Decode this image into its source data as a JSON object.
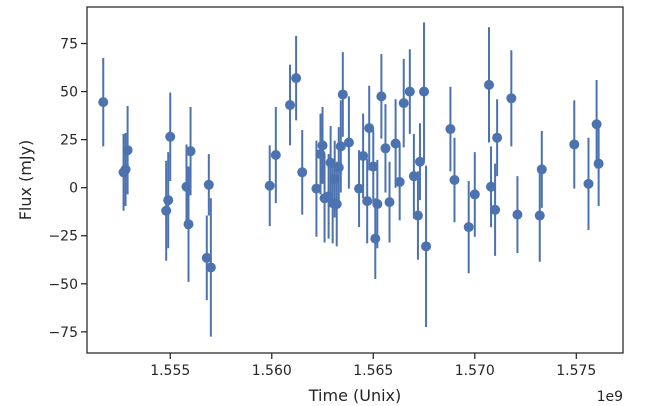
{
  "chart_data": {
    "type": "scatter",
    "errorbars": true,
    "title": "",
    "xlabel": "Time (Unix)",
    "ylabel": "Flux (mJy)",
    "x_offset_label": "1e9",
    "x_tick_labels": [
      "1.555",
      "1.560",
      "1.565",
      "1.570",
      "1.575"
    ],
    "x_ticks": [
      1.555,
      1.56,
      1.565,
      1.57,
      1.575
    ],
    "y_tick_labels": [
      "75",
      "50",
      "25",
      "0",
      "−25",
      "−50",
      "−75"
    ],
    "y_ticks": [
      75,
      50,
      25,
      0,
      -25,
      -50,
      -75
    ],
    "xlim": [
      1.5509,
      1.5773
    ],
    "ylim": [
      -86,
      94
    ],
    "grid": false,
    "color": "#4c72b0",
    "points": [
      {
        "x": 1.5517,
        "y": 44.5,
        "err": 23
      },
      {
        "x": 1.5527,
        "y": 8,
        "err": 20
      },
      {
        "x": 1.5528,
        "y": 9.5,
        "err": 19
      },
      {
        "x": 1.5529,
        "y": 19.5,
        "err": 23
      },
      {
        "x": 1.5548,
        "y": -12,
        "err": 26
      },
      {
        "x": 1.5549,
        "y": -6.5,
        "err": 25
      },
      {
        "x": 1.555,
        "y": 26.5,
        "err": 23
      },
      {
        "x": 1.5558,
        "y": 0.5,
        "err": 22
      },
      {
        "x": 1.5559,
        "y": -19,
        "err": 30
      },
      {
        "x": 1.556,
        "y": 19,
        "err": 23
      },
      {
        "x": 1.5568,
        "y": -36.5,
        "err": 22
      },
      {
        "x": 1.5569,
        "y": 1.5,
        "err": 16
      },
      {
        "x": 1.557,
        "y": -41.5,
        "err": 36
      },
      {
        "x": 1.5599,
        "y": 1,
        "err": 21
      },
      {
        "x": 1.5602,
        "y": 17,
        "err": 25
      },
      {
        "x": 1.5609,
        "y": 43,
        "err": 21
      },
      {
        "x": 1.5612,
        "y": 57,
        "err": 22
      },
      {
        "x": 1.5615,
        "y": 8,
        "err": 22
      },
      {
        "x": 1.5622,
        "y": -0.5,
        "err": 25
      },
      {
        "x": 1.5624,
        "y": 17.5,
        "err": 21
      },
      {
        "x": 1.5625,
        "y": 22,
        "err": 20
      },
      {
        "x": 1.5626,
        "y": -5.5,
        "err": 23
      },
      {
        "x": 1.5628,
        "y": -4.5,
        "err": 22
      },
      {
        "x": 1.5629,
        "y": 13,
        "err": 19
      },
      {
        "x": 1.563,
        "y": -8,
        "err": 21
      },
      {
        "x": 1.5631,
        "y": 4.5,
        "err": 20
      },
      {
        "x": 1.5632,
        "y": -8.5,
        "err": 22
      },
      {
        "x": 1.5633,
        "y": 10.5,
        "err": 21
      },
      {
        "x": 1.5634,
        "y": 21.5,
        "err": 24
      },
      {
        "x": 1.5635,
        "y": 48.5,
        "err": 22
      },
      {
        "x": 1.5638,
        "y": 23.5,
        "err": 24
      },
      {
        "x": 1.5643,
        "y": -0.5,
        "err": 20
      },
      {
        "x": 1.5645,
        "y": 16.5,
        "err": 22
      },
      {
        "x": 1.5647,
        "y": -7,
        "err": 22
      },
      {
        "x": 1.5648,
        "y": 31,
        "err": 22
      },
      {
        "x": 1.565,
        "y": 11,
        "err": 19
      },
      {
        "x": 1.5651,
        "y": -26.5,
        "err": 21
      },
      {
        "x": 1.5652,
        "y": -8.5,
        "err": 23
      },
      {
        "x": 1.5654,
        "y": 47.5,
        "err": 22
      },
      {
        "x": 1.5656,
        "y": 20.5,
        "err": 23
      },
      {
        "x": 1.5658,
        "y": -7.5,
        "err": 21
      },
      {
        "x": 1.5661,
        "y": 23,
        "err": 23
      },
      {
        "x": 1.5663,
        "y": 3,
        "err": 20
      },
      {
        "x": 1.5665,
        "y": 44,
        "err": 23
      },
      {
        "x": 1.5668,
        "y": 50,
        "err": 22
      },
      {
        "x": 1.567,
        "y": 6,
        "err": 22
      },
      {
        "x": 1.5672,
        "y": -14.5,
        "err": 23
      },
      {
        "x": 1.5673,
        "y": 13.5,
        "err": 20
      },
      {
        "x": 1.5675,
        "y": 50,
        "err": 36
      },
      {
        "x": 1.5676,
        "y": -30.5,
        "err": 42
      },
      {
        "x": 1.5688,
        "y": 30.5,
        "err": 22
      },
      {
        "x": 1.569,
        "y": 4,
        "err": 22
      },
      {
        "x": 1.5697,
        "y": -20.5,
        "err": 24
      },
      {
        "x": 1.57,
        "y": -3.5,
        "err": 22
      },
      {
        "x": 1.5707,
        "y": 53.5,
        "err": 30
      },
      {
        "x": 1.5708,
        "y": 0.5,
        "err": 21
      },
      {
        "x": 1.571,
        "y": -11.5,
        "err": 24
      },
      {
        "x": 1.5711,
        "y": 26,
        "err": 20
      },
      {
        "x": 1.5718,
        "y": 46.5,
        "err": 25
      },
      {
        "x": 1.5721,
        "y": -14,
        "err": 20
      },
      {
        "x": 1.5732,
        "y": -14.5,
        "err": 24
      },
      {
        "x": 1.5733,
        "y": 9.5,
        "err": 20
      },
      {
        "x": 1.5749,
        "y": 22.5,
        "err": 23
      },
      {
        "x": 1.5756,
        "y": 2,
        "err": 24
      },
      {
        "x": 1.576,
        "y": 33,
        "err": 23
      },
      {
        "x": 1.5761,
        "y": 12.5,
        "err": 22
      }
    ]
  }
}
